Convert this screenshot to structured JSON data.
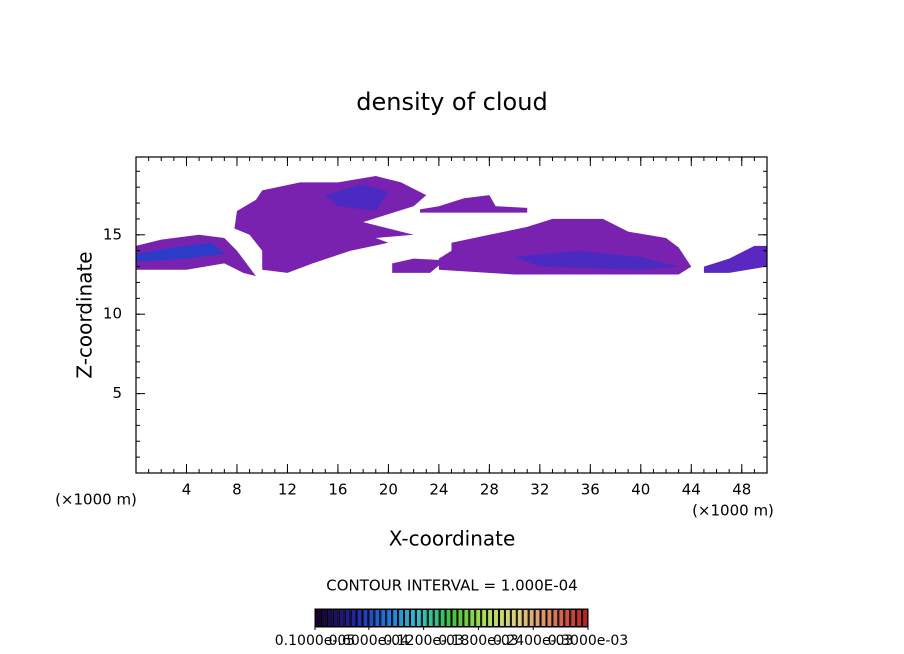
{
  "chart_data": {
    "type": "contour",
    "title": "density of cloud",
    "x_label": "X-coordinate",
    "y_label": "Z-coordinate",
    "x_unit_left": "(×1000 m)",
    "x_unit_right": "(×1000 m)",
    "contour_note": "CONTOUR INTERVAL = 1.000E-04",
    "xlim": [
      0,
      50
    ],
    "ylim": [
      0,
      19.9
    ],
    "xticks": [
      4,
      8,
      12,
      16,
      20,
      24,
      28,
      32,
      36,
      40,
      44,
      48
    ],
    "yticks": [
      5,
      10,
      15
    ],
    "clim": [
      1e-06,
      0.0003
    ],
    "colormap": [
      "#1a0030",
      "#2020a0",
      "#2070e0",
      "#30c0d0",
      "#40c040",
      "#b0e050",
      "#e0d080",
      "#e08060",
      "#c02020"
    ],
    "colorbar_ticks": [
      {
        "value": 1e-06,
        "label": "0.1000e-05"
      },
      {
        "value": 6e-05,
        "label": "0.6000e-04"
      },
      {
        "value": 0.00012,
        "label": "0.1200e-03"
      },
      {
        "value": 0.00018,
        "label": "0.1800e-03"
      },
      {
        "value": 0.00024,
        "label": "0.2400e-03"
      },
      {
        "value": 0.0003,
        "label": "0.3000e-03"
      }
    ],
    "regions": [
      {
        "level": 2e-05,
        "color": "#7a22b0",
        "points": [
          [
            0,
            14.3
          ],
          [
            2,
            14.7
          ],
          [
            5,
            15
          ],
          [
            7,
            14.8
          ],
          [
            8,
            14
          ],
          [
            9.5,
            12.4
          ],
          [
            8.5,
            12.6
          ],
          [
            7,
            13.2
          ],
          [
            4,
            12.8
          ],
          [
            0,
            12.8
          ]
        ]
      },
      {
        "level": 5e-05,
        "color": "#2a3cc8",
        "points": [
          [
            0,
            13.8
          ],
          [
            3,
            14.2
          ],
          [
            6,
            14.5
          ],
          [
            7,
            13.8
          ],
          [
            4,
            13.5
          ],
          [
            0,
            13.3
          ]
        ]
      },
      {
        "level": 2e-05,
        "color": "#7a22b0",
        "points": [
          [
            10,
            17.8
          ],
          [
            13,
            18.3
          ],
          [
            16,
            18.3
          ],
          [
            19,
            18.7
          ],
          [
            21,
            18.3
          ],
          [
            23,
            17.5
          ],
          [
            22,
            16.8
          ],
          [
            20,
            16.3
          ],
          [
            18,
            15.8
          ],
          [
            22,
            15
          ],
          [
            19,
            14.8
          ],
          [
            20,
            14.5
          ],
          [
            17,
            14
          ],
          [
            14,
            13.2
          ],
          [
            12,
            12.6
          ],
          [
            10,
            12.8
          ],
          [
            10,
            14
          ],
          [
            9,
            15
          ],
          [
            7.8,
            15.4
          ],
          [
            8,
            16.5
          ],
          [
            9.5,
            17.2
          ]
        ]
      },
      {
        "level": 4e-05,
        "color": "#4a2ac0",
        "points": [
          [
            15,
            17.5
          ],
          [
            18,
            18.2
          ],
          [
            20,
            17.7
          ],
          [
            19,
            16.5
          ],
          [
            16,
            16.8
          ]
        ]
      },
      {
        "level": 2e-05,
        "color": "#7a22b0",
        "points": [
          [
            24,
            16.8
          ],
          [
            26,
            17.3
          ],
          [
            28,
            17.5
          ],
          [
            28.5,
            16.8
          ],
          [
            31,
            16.7
          ],
          [
            31,
            16.4
          ],
          [
            22.5,
            16.4
          ],
          [
            22.5,
            16.6
          ]
        ]
      },
      {
        "level": 2e-05,
        "color": "#7a22b0",
        "points": [
          [
            20.3,
            12.6
          ],
          [
            23.3,
            12.6
          ],
          [
            24.5,
            13.4
          ],
          [
            22,
            13.5
          ],
          [
            20.3,
            13.2
          ]
        ]
      },
      {
        "level": 2e-05,
        "color": "#7a22b0",
        "points": [
          [
            25,
            14.5
          ],
          [
            28,
            15
          ],
          [
            31,
            15.5
          ],
          [
            33,
            16
          ],
          [
            37,
            16
          ],
          [
            39,
            15.2
          ],
          [
            42,
            14.8
          ],
          [
            43,
            14.2
          ],
          [
            44,
            13
          ],
          [
            43,
            12.5
          ],
          [
            30,
            12.5
          ],
          [
            24,
            12.8
          ],
          [
            24,
            13.5
          ],
          [
            25,
            14
          ]
        ]
      },
      {
        "level": 4e-05,
        "color": "#4a2ac0",
        "points": [
          [
            30,
            13.6
          ],
          [
            35,
            14
          ],
          [
            40,
            13.6
          ],
          [
            43,
            13
          ],
          [
            40,
            12.8
          ],
          [
            32,
            13
          ]
        ]
      },
      {
        "level": 3e-05,
        "color": "#5a28c0",
        "points": [
          [
            45,
            12.6
          ],
          [
            45,
            13
          ],
          [
            47,
            13.5
          ],
          [
            49,
            14.3
          ],
          [
            50,
            14.3
          ],
          [
            50,
            13
          ],
          [
            47,
            12.6
          ]
        ]
      }
    ]
  }
}
